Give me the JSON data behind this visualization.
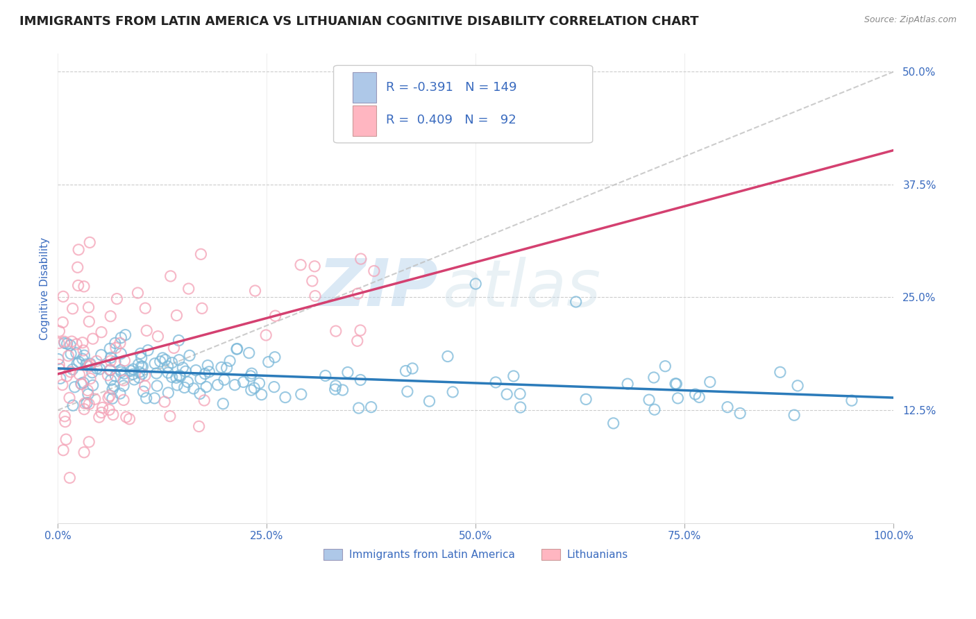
{
  "title": "IMMIGRANTS FROM LATIN AMERICA VS LITHUANIAN COGNITIVE DISABILITY CORRELATION CHART",
  "source": "Source: ZipAtlas.com",
  "ylabel": "Cognitive Disability",
  "xlim": [
    0.0,
    1.0
  ],
  "ylim": [
    0.0,
    0.52
  ],
  "xticks": [
    0.0,
    0.25,
    0.5,
    0.75,
    1.0
  ],
  "xticklabels": [
    "0.0%",
    "25.0%",
    "50.0%",
    "75.0%",
    "100.0%"
  ],
  "yticks_right": [
    0.125,
    0.25,
    0.375,
    0.5
  ],
  "yticklabels_right": [
    "12.5%",
    "25.0%",
    "37.5%",
    "50.0%"
  ],
  "background_color": "#ffffff",
  "grid_color": "#cccccc",
  "blue_color": "#7ab8d9",
  "pink_color": "#f4a0b5",
  "blue_fill": "#aec8e8",
  "pink_fill": "#ffb6c1",
  "trend_blue": "#2b7bba",
  "trend_pink": "#d44070",
  "trend_gray": "#c0c0c0",
  "text_blue": "#3a6bbf",
  "R_blue": -0.391,
  "N_blue": 149,
  "R_pink": 0.409,
  "N_pink": 92,
  "legend_label_blue": "Immigrants from Latin America",
  "legend_label_pink": "Lithuanians",
  "watermark_zip": "ZIP",
  "watermark_atlas": "atlas",
  "title_fontsize": 13,
  "label_fontsize": 11,
  "tick_fontsize": 11,
  "gray_line_x": [
    0.0,
    1.0
  ],
  "gray_line_y": [
    0.125,
    0.5
  ]
}
